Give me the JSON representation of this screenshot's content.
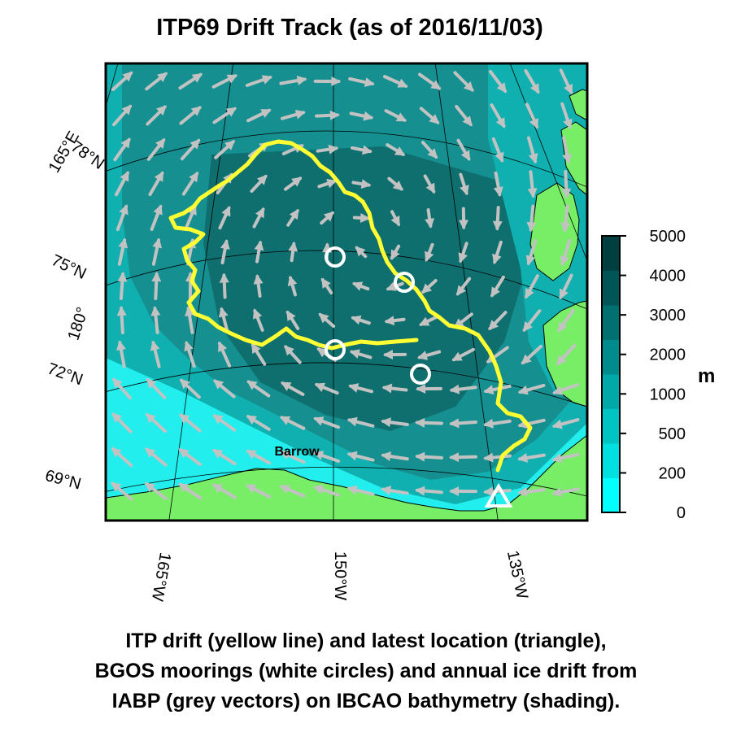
{
  "title": "ITP69 Drift Track (as of 2016/11/03)",
  "caption": [
    "ITP drift (yellow line) and latest location (triangle),",
    "BGOS moorings (white circles) and annual ice drift from",
    "IABP (grey vectors) on IBCAO bathymetry (shading)."
  ],
  "map": {
    "lat_labels": [
      "78°N",
      "75°N",
      "72°N",
      "69°N"
    ],
    "lon_labels_left": [
      "165°E",
      "180°"
    ],
    "lon_labels_bottom": [
      "165°W",
      "150°W",
      "135°W"
    ],
    "place_label": "Barrow",
    "colors": {
      "land": "#77ee66",
      "shelf": "#22eeee",
      "slope": "#11b0b0",
      "basin_mid": "#158f8f",
      "basin_deep": "#0f6f6f",
      "track": "#ffff33",
      "vectors": "#c2c2c2",
      "markers": "#ffffff"
    }
  },
  "colorbar": {
    "unit": "m",
    "ticks": [
      "5000",
      "4000",
      "3000",
      "2000",
      "1000",
      "500",
      "200",
      "0"
    ],
    "colors": [
      "#00ffff",
      "#00e0e0",
      "#00c4c4",
      "#00a8a8",
      "#008c8c",
      "#007070",
      "#005656",
      "#003f3f"
    ]
  }
}
